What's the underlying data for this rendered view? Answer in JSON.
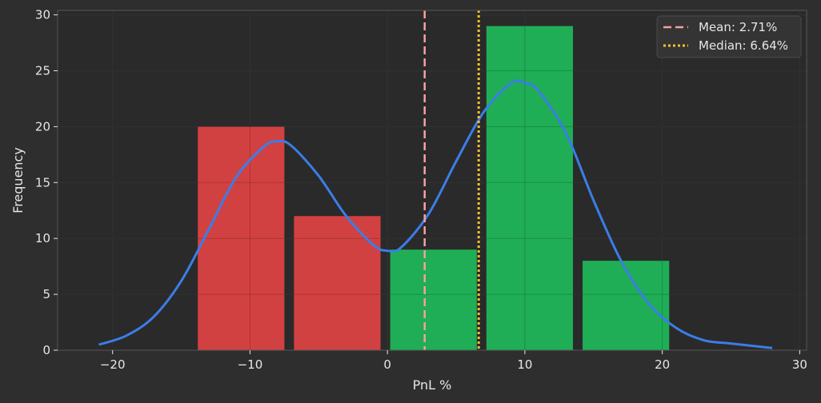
{
  "chart_data": {
    "type": "bar",
    "title": "",
    "xlabel": "PnL %",
    "ylabel": "Frequency",
    "xlim": [
      -24,
      30.5
    ],
    "ylim": [
      0,
      30.4
    ],
    "xticks": [
      -20,
      -10,
      0,
      10,
      20,
      30
    ],
    "xtick_labels": [
      "−20",
      "−10",
      "0",
      "10",
      "20",
      "30"
    ],
    "yticks": [
      0,
      5,
      10,
      15,
      20,
      25,
      30
    ],
    "ytick_labels": [
      "0",
      "5",
      "10",
      "15",
      "20",
      "25",
      "30"
    ],
    "grid": true,
    "legend_position": "top-right",
    "bars": [
      {
        "x0": -13.8,
        "x1": -7.5,
        "value": 20,
        "color": "#d24141"
      },
      {
        "x0": -6.8,
        "x1": -0.5,
        "value": 12,
        "color": "#d24141"
      },
      {
        "x0": 0.2,
        "x1": 6.5,
        "value": 9,
        "color": "#1fae55"
      },
      {
        "x0": 7.2,
        "x1": 13.5,
        "value": 29,
        "color": "#1fae55"
      },
      {
        "x0": 14.2,
        "x1": 20.5,
        "value": 8,
        "color": "#1fae55"
      }
    ],
    "kde_curve": {
      "color": "#3b7de8",
      "x": [
        -21,
        -19,
        -17,
        -15,
        -13,
        -11,
        -9,
        -8,
        -7,
        -5,
        -3,
        -1,
        0,
        1,
        3,
        5,
        7,
        9,
        10,
        11,
        13,
        15,
        17,
        19,
        21,
        23,
        25,
        28
      ],
      "y": [
        0.5,
        1.3,
        3.0,
        6.2,
        10.8,
        15.5,
        18.2,
        18.7,
        18.3,
        15.6,
        12.0,
        9.4,
        8.9,
        9.2,
        12.2,
        16.9,
        21.3,
        23.9,
        23.9,
        23.2,
        19.4,
        13.4,
        8.0,
        4.2,
        2.0,
        0.9,
        0.6,
        0.2
      ]
    },
    "reference_lines": [
      {
        "name": "Mean: 2.71%",
        "x": 2.71,
        "color": "#f5a0a0",
        "style": "dashed"
      },
      {
        "name": "Median: 6.64%",
        "x": 6.64,
        "color": "#f2c12e",
        "style": "dotted"
      }
    ],
    "colors": {
      "background": "#2e2e2e",
      "plot_background": "#2a2a2a",
      "grid": "#3d3d3d",
      "spine": "#555555",
      "text": "#e6e6e6",
      "loss_bar": "#d24141",
      "gain_bar": "#1fae55"
    }
  }
}
